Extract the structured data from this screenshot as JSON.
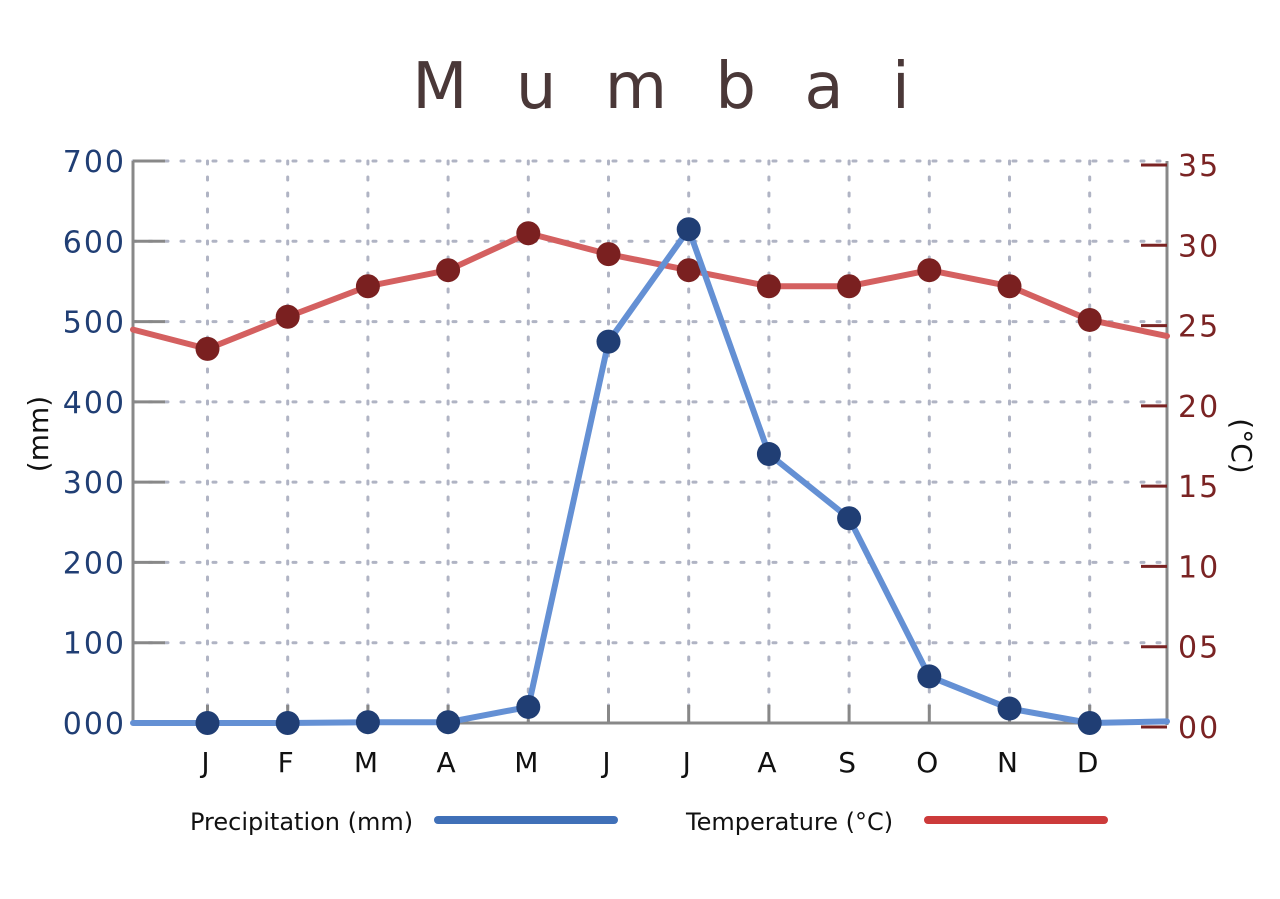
{
  "chart_data": {
    "type": "line",
    "title": "M u m b a i",
    "categories": [
      "J",
      "F",
      "M",
      "A",
      "M",
      "J",
      "J",
      "A",
      "S",
      "O",
      "N",
      "D"
    ],
    "y_left": {
      "label": "(mm)",
      "range": [
        0,
        700
      ],
      "ticks": [
        0,
        100,
        200,
        300,
        400,
        500,
        600,
        700
      ],
      "tick_labels": [
        "000",
        "100",
        "200",
        "300",
        "400",
        "500",
        "600",
        "700"
      ]
    },
    "y_right": {
      "label": "(°C)",
      "range": [
        0,
        35
      ],
      "ticks": [
        0,
        5,
        10,
        15,
        20,
        25,
        30,
        35
      ],
      "tick_labels": [
        "00",
        "05",
        "10",
        "15",
        "20",
        "25",
        "30",
        "35"
      ]
    },
    "series": [
      {
        "name": "Precipitation (mm)",
        "axis": "left",
        "values": [
          0,
          0,
          1,
          1,
          20,
          475,
          615,
          335,
          255,
          58,
          18,
          0
        ],
        "edge_start": 0,
        "edge_end": 2
      },
      {
        "name": "Temperature (°C)",
        "axis": "right",
        "values": [
          23.3,
          25.3,
          27.2,
          28.2,
          30.5,
          29.2,
          28.2,
          27.2,
          27.2,
          28.2,
          27.2,
          25.1
        ],
        "edge_start": 24.5,
        "edge_end": 24.1
      }
    ],
    "grid": true,
    "legend": "bottom",
    "colors": {
      "precip_line": "#6490d4",
      "precip_marker": "#203e74",
      "precip_legend": "#4070b8",
      "temp_line": "#d46060",
      "temp_marker": "#7a2020",
      "temp_legend": "#cc3a3a",
      "left_tick_text": "#203e74",
      "right_tick_text": "#7a2323",
      "right_tick_mark": "#7a2323",
      "axis": "#888888",
      "grid": "#b0b4c4",
      "title": "#4a3838"
    }
  }
}
